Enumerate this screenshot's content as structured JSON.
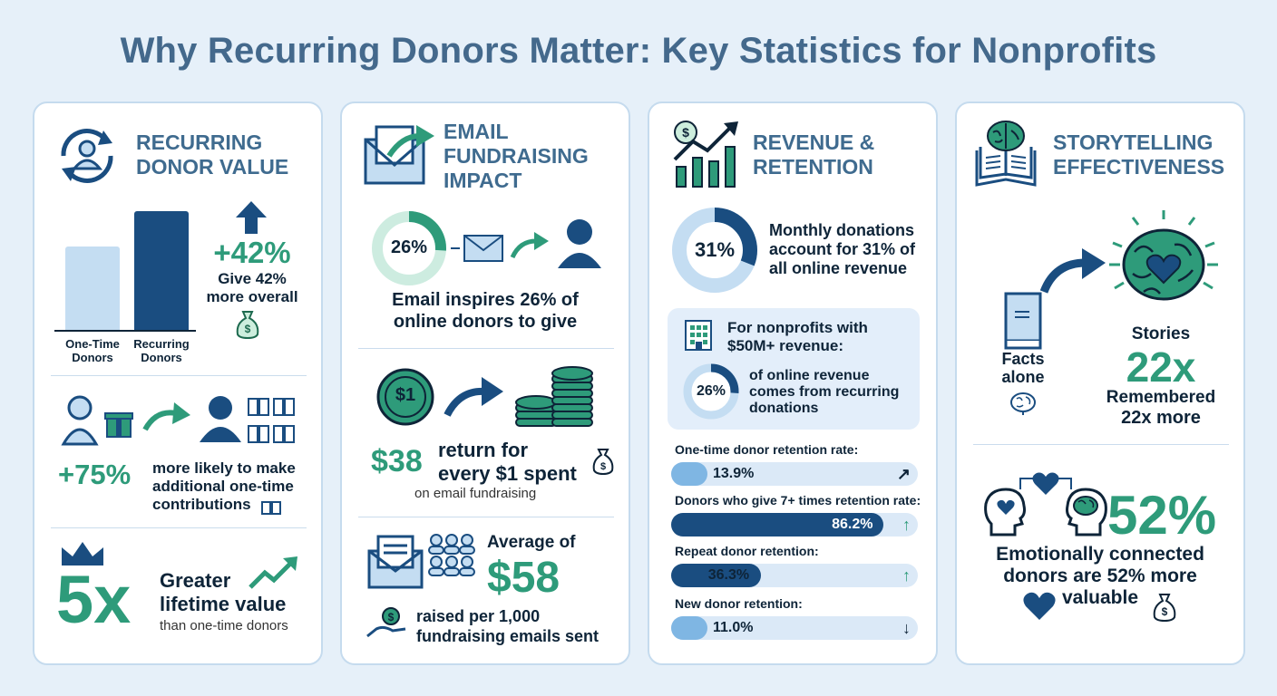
{
  "title": "Why Recurring Donors Matter: Key Statistics for Nonprofits",
  "colors": {
    "navy": "#1a4d80",
    "teal": "#2e9b7a",
    "light_blue": "#c4ddf2",
    "title": "#44698c"
  },
  "card1": {
    "title_line1": "RECURRING",
    "title_line2": "DONOR VALUE",
    "icon": "recurring-donor-icon",
    "chart_data": {
      "type": "bar",
      "categories": [
        "One-Time Donors",
        "Recurring Donors"
      ],
      "values": [
        100,
        142
      ],
      "ylim": [
        0,
        150
      ]
    },
    "bar_label_1a": "One-Time",
    "bar_label_1b": "Donors",
    "bar_label_2a": "Recurring",
    "bar_label_2b": "Donors",
    "stat1_value": "+42%",
    "stat1_text_a": "Give 42%",
    "stat1_text_b": "more overall",
    "stat2_value": "+75%",
    "stat2_text_a": "more likely to make",
    "stat2_text_b": "additional one-time",
    "stat2_text_c": "contributions",
    "stat3_value": "5x",
    "stat3_text_a": "Greater",
    "stat3_text_b": "lifetime value",
    "stat3_text_c": "than one-time donors"
  },
  "card2": {
    "title_line1": "EMAIL",
    "title_line2": "FUNDRAISING",
    "title_line3": "IMPACT",
    "icon": "email-envelope-icon",
    "donut_value": 26,
    "donut_label": "26%",
    "stat1_text_a": "Email inspires 26% of",
    "stat1_text_b": "online donors to give",
    "coin_label": "$1",
    "stat2_value": "$38",
    "stat2_text_a": "return for",
    "stat2_text_b": "every $1 spent",
    "stat2_text_c": "on email fundraising",
    "stat3_prefix": "Average of",
    "stat3_value": "$58",
    "stat3_text_a": "raised per 1,000",
    "stat3_text_b": "fundraising emails sent"
  },
  "card3": {
    "title_line1": "REVENUE &",
    "title_line2": "RETENTION",
    "icon": "growth-chart-icon",
    "donut1_value": 31,
    "donut1_label": "31%",
    "donut1_text_a": "Monthly donations",
    "donut1_text_b": "account for 31% of",
    "donut1_text_c": "all online revenue",
    "box_title_a": "For nonprofits with",
    "box_title_b": "$50M+ revenue:",
    "donut2_value": 26,
    "donut2_label": "26%",
    "donut2_text_a": "of online revenue",
    "donut2_text_b": "comes from recurring",
    "donut2_text_c": "donations",
    "bars": [
      {
        "label": "One-time donor retention rate:",
        "value": 13.9,
        "display": "13.9%",
        "trend": "↗"
      },
      {
        "label": "Donors who give 7+ times retention rate:",
        "value": 86.2,
        "display": "86.2%",
        "trend": "↑"
      },
      {
        "label": "Repeat donor retention:",
        "value": 36.3,
        "display": "36.3%",
        "trend": "↑"
      },
      {
        "label": "New donor retention:",
        "value": 11.0,
        "display": "11.0%",
        "trend": "↓"
      }
    ]
  },
  "card4": {
    "title_line1": "STORYTELLING",
    "title_line2": "EFFECTIVENESS",
    "icon": "book-brain-icon",
    "facts_a": "Facts",
    "facts_b": "alone",
    "stories_label": "Stories",
    "stories_value": "22x",
    "stories_text_a": "Remembered",
    "stories_text_b": "22x more",
    "stat2_value": "52%",
    "stat2_text_a": "Emotionally connected",
    "stat2_text_b": "donors are 52% more",
    "stat2_text_c": "valuable"
  }
}
